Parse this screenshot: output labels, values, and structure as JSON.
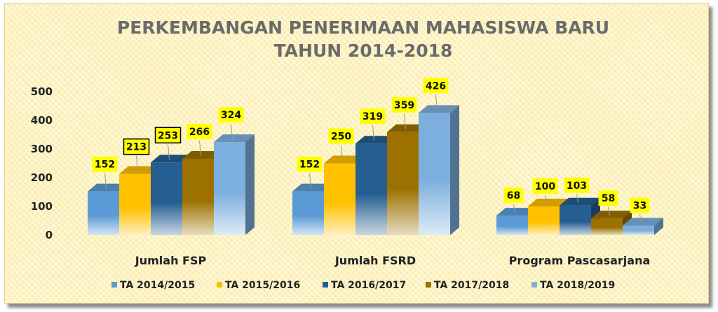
{
  "chart_data": {
    "type": "bar",
    "title_line1": "PERKEMBANGAN PENERIMAAN MAHASISWA BARU",
    "title_line2": "TAHUN 2014-2018",
    "categories": [
      "Jumlah FSP",
      "Jumlah FSRD",
      "Program Pascasarjana"
    ],
    "series": [
      {
        "name": "TA 2014/2015",
        "color": "#5b9bd5",
        "values": [
          152,
          152,
          68
        ]
      },
      {
        "name": "TA 2015/2016",
        "color": "#ffc000",
        "values": [
          213,
          250,
          100
        ]
      },
      {
        "name": "TA 2016/2017",
        "color": "#255e91",
        "values": [
          253,
          319,
          103
        ]
      },
      {
        "name": "TA 2017/2018",
        "color": "#9c7100",
        "values": [
          266,
          359,
          58
        ]
      },
      {
        "name": "TA 2018/2019",
        "color": "#7cafdd",
        "values": [
          324,
          426,
          33
        ]
      }
    ],
    "y_ticks": [
      "0",
      "100",
      "200",
      "300",
      "400",
      "500"
    ],
    "ylim": [
      0,
      500
    ],
    "legend_position": "bottom",
    "gridlines": false,
    "data_labels": true
  }
}
